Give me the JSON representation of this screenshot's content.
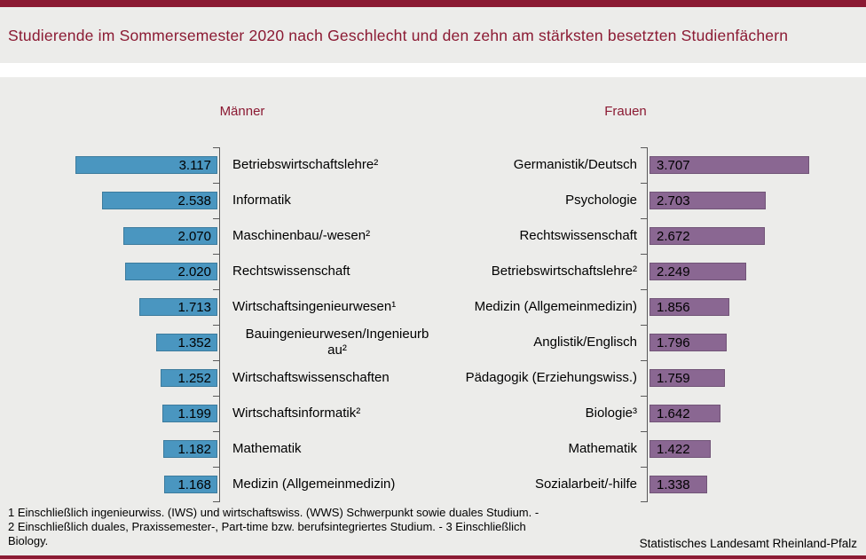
{
  "colors": {
    "accent_maroon": "#8B1A33",
    "men_bar": "#4A96C0",
    "women_bar": "#8A6792",
    "band_background": "#ECECEA",
    "axis": "#595959"
  },
  "chart_data": {
    "type": "bar",
    "orientation": "horizontal_mirrored",
    "title": "Studierende im Sommersemester 2020 nach Geschlecht und den zehn am stärksten besetzten Studienfächern",
    "grid": false,
    "legend_position": "panel_headers",
    "value_labels_inside_bars": true,
    "panels": [
      {
        "name": "Männer",
        "color": "#4A96C0",
        "bar_direction": "left",
        "rows": [
          {
            "label": "Betriebswirtschaftslehre²",
            "value": 3117,
            "display": "3.117"
          },
          {
            "label": "Informatik",
            "value": 2538,
            "display": "2.538"
          },
          {
            "label": "Maschinenbau/-wesen²",
            "value": 2070,
            "display": "2.070"
          },
          {
            "label": "Rechtswissenschaft",
            "value": 2020,
            "display": "2.020"
          },
          {
            "label": "Wirtschaftsingenieurwesen¹",
            "value": 1713,
            "display": "1.713"
          },
          {
            "label": "Bauingenieurwesen/Ingenieurb\nau²",
            "value": 1352,
            "display": "1.352"
          },
          {
            "label": "Wirtschaftswissenschaften",
            "value": 1252,
            "display": "1.252"
          },
          {
            "label": "Wirtschaftsinformatik²",
            "value": 1199,
            "display": "1.199"
          },
          {
            "label": "Mathematik",
            "value": 1182,
            "display": "1.182"
          },
          {
            "label": "Medizin (Allgemeinmedizin)",
            "value": 1168,
            "display": "1.168"
          }
        ]
      },
      {
        "name": "Frauen",
        "color": "#8A6792",
        "bar_direction": "right",
        "rows": [
          {
            "label": "Germanistik/Deutsch",
            "value": 3707,
            "display": "3.707"
          },
          {
            "label": "Psychologie",
            "value": 2703,
            "display": "2.703"
          },
          {
            "label": "Rechtswissenschaft",
            "value": 2672,
            "display": "2.672"
          },
          {
            "label": "Betriebswirtschaftslehre²",
            "value": 2249,
            "display": "2.249"
          },
          {
            "label": "Medizin (Allgemeinmedizin)",
            "value": 1856,
            "display": "1.856"
          },
          {
            "label": "Anglistik/Englisch",
            "value": 1796,
            "display": "1.796"
          },
          {
            "label": "Pädagogik (Erziehungswiss.)",
            "value": 1759,
            "display": "1.759"
          },
          {
            "label": "Biologie³",
            "value": 1642,
            "display": "1.642"
          },
          {
            "label": "Mathematik",
            "value": 1422,
            "display": "1.422"
          },
          {
            "label": "Sozialarbeit/-hilfe",
            "value": 1338,
            "display": "1.338"
          }
        ]
      }
    ]
  },
  "footnotes": "1 Einschließlich ingenieurwiss. (IWS) und wirtschaftswiss. (WWS) Schwerpunkt sowie duales Studium. -\n2 Einschließlich duales, Praxissemester-, Part-time bzw. berufsintegriertes Studium. - 3 Einschließlich\nBiology.",
  "source": "Statistisches Landesamt Rheinland-Pfalz"
}
